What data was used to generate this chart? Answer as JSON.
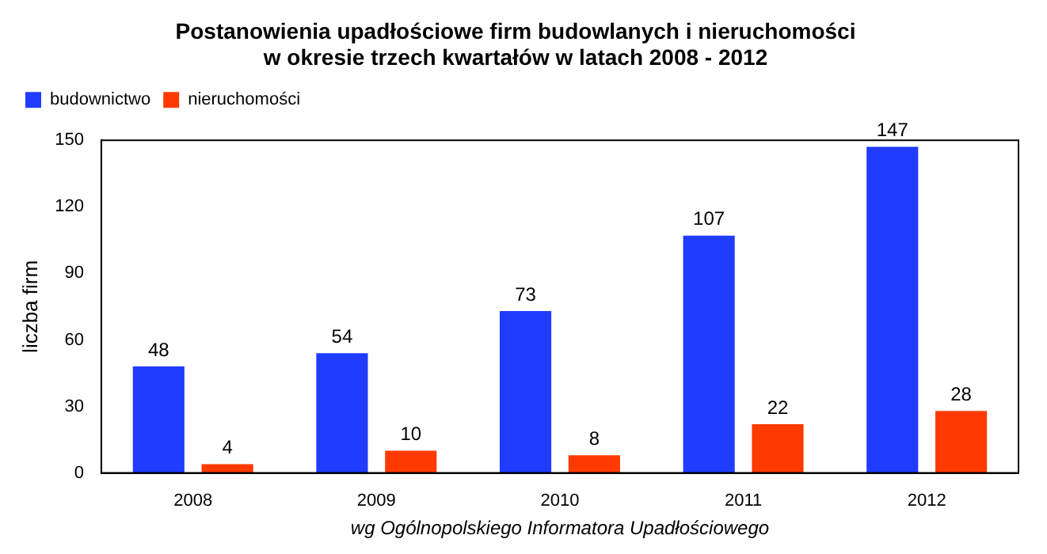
{
  "chart_data": {
    "type": "bar",
    "title": "Postanowienia upadłościowe firm budowlanych i nieruchomości\nw okresie trzech kwartałów w latach 2008 - 2012",
    "ylabel": "liczba firm",
    "categories": [
      "2008",
      "2009",
      "2010",
      "2011",
      "2012"
    ],
    "series": [
      {
        "name": "budownictwo",
        "color": "#1f3cff",
        "values": [
          48,
          54,
          73,
          107,
          147
        ]
      },
      {
        "name": "nieruchomości",
        "color": "#ff3a00",
        "values": [
          4,
          10,
          8,
          22,
          28
        ]
      }
    ],
    "ylim": [
      0,
      150
    ],
    "yticks": [
      0,
      30,
      60,
      90,
      120,
      150
    ],
    "grid": false,
    "legend": "top left",
    "data_labels": true,
    "annotations": [
      "wg Ogólnopolskiego Informatora Upadłościowego"
    ]
  }
}
